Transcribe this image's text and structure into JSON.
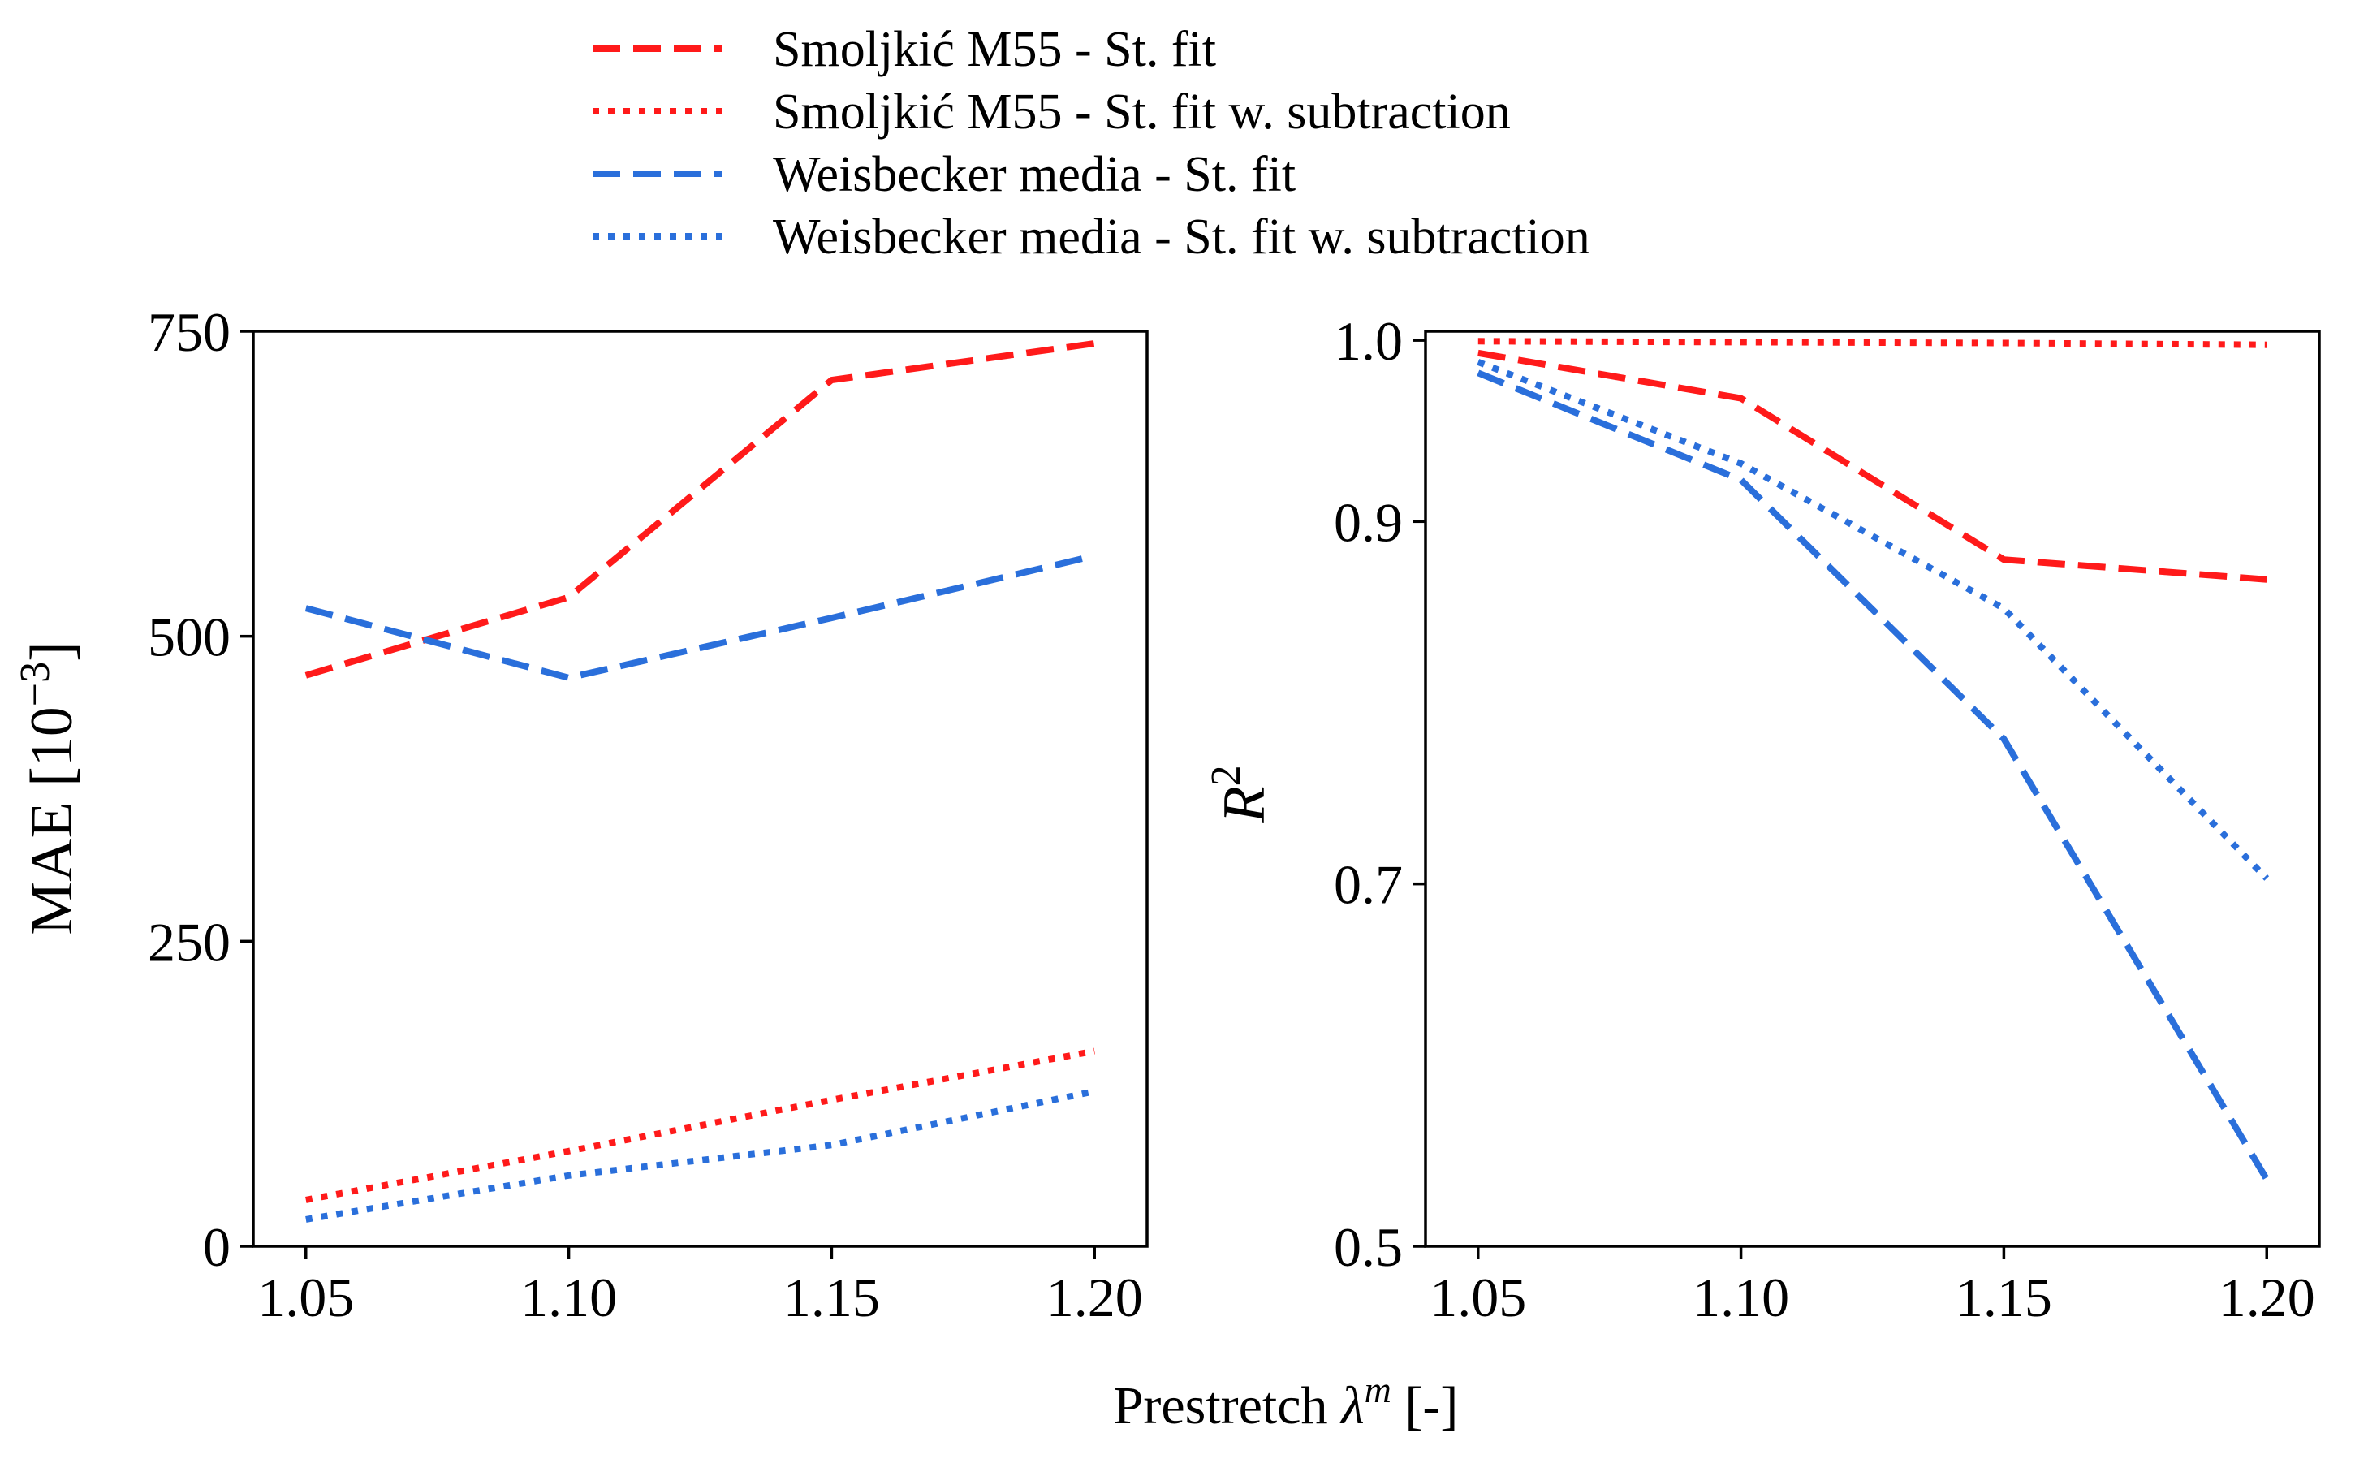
{
  "chart_data": [
    {
      "type": "line",
      "panel": "left",
      "xlabel": "",
      "ylabel": "MAE [10",
      "ylabel_sup": "−3",
      "ylabel_close": "]",
      "xlim": [
        1.04,
        1.21
      ],
      "ylim": [
        0,
        750
      ],
      "xticks": [
        1.05,
        1.1,
        1.15,
        1.2
      ],
      "xtick_labels": [
        "1.05",
        "1.10",
        "1.15",
        "1.20"
      ],
      "yticks": [
        0,
        250,
        500,
        750
      ],
      "ytick_labels": [
        "0",
        "250",
        "500",
        "750"
      ],
      "grid": false,
      "x": [
        1.05,
        1.1,
        1.15,
        1.2
      ],
      "series": [
        {
          "name": "Smoljkić M55 - St. fit",
          "color": "#ff1a1a",
          "style": "dashed",
          "values": [
            468,
            532,
            710,
            740
          ]
        },
        {
          "name": "Smoljkić M55 - St. fit w. subtraction",
          "color": "#ff1a1a",
          "style": "dotted",
          "values": [
            38,
            78,
            120,
            160
          ]
        },
        {
          "name": "Weisbecker media - St. fit",
          "color": "#2a6fdb",
          "style": "dashed",
          "values": [
            523,
            466,
            515,
            566
          ]
        },
        {
          "name": "Weisbecker media - St. fit w. subtraction",
          "color": "#2a6fdb",
          "style": "dotted",
          "values": [
            22,
            58,
            83,
            127
          ]
        }
      ]
    },
    {
      "type": "line",
      "panel": "right",
      "xlabel": "",
      "ylabel": "R",
      "ylabel_sup": "2",
      "ylabel_close": "",
      "xlim": [
        1.04,
        1.21
      ],
      "ylim": [
        0.5,
        1.005
      ],
      "xticks": [
        1.05,
        1.1,
        1.15,
        1.2
      ],
      "xtick_labels": [
        "1.05",
        "1.10",
        "1.15",
        "1.20"
      ],
      "yticks": [
        0.5,
        0.7,
        0.9,
        1.0
      ],
      "ytick_labels": [
        "0.5",
        "0.7",
        "0.9",
        "1.0"
      ],
      "grid": false,
      "x": [
        1.05,
        1.1,
        1.15,
        1.2
      ],
      "series": [
        {
          "name": "Smoljkić M55 - St. fit",
          "color": "#ff1a1a",
          "style": "dashed",
          "values": [
            0.993,
            0.968,
            0.879,
            0.868
          ]
        },
        {
          "name": "Smoljkić M55 - St. fit w. subtraction",
          "color": "#ff1a1a",
          "style": "dotted",
          "values": [
            0.9995,
            0.999,
            0.9985,
            0.9975
          ]
        },
        {
          "name": "Weisbecker media - St. fit",
          "color": "#2a6fdb",
          "style": "dashed",
          "values": [
            0.982,
            0.923,
            0.78,
            0.537
          ]
        },
        {
          "name": "Weisbecker media - St. fit w. subtraction",
          "color": "#2a6fdb",
          "style": "dotted",
          "values": [
            0.988,
            0.932,
            0.852,
            0.703
          ]
        }
      ]
    }
  ],
  "shared": {
    "xlabel_prefix": "Prestretch ",
    "xlabel_symbol": "λ",
    "xlabel_sup": "m",
    "xlabel_suffix": " [-]"
  },
  "legend": {
    "placement": "top-center",
    "entries": [
      {
        "label": "Smoljkić M55 - St. fit",
        "color": "#ff1a1a",
        "style": "dashed"
      },
      {
        "label": "Smoljkić M55 - St. fit w. subtraction",
        "color": "#ff1a1a",
        "style": "dotted"
      },
      {
        "label": "Weisbecker media - St. fit",
        "color": "#2a6fdb",
        "style": "dashed"
      },
      {
        "label": "Weisbecker media - St. fit w. subtraction",
        "color": "#2a6fdb",
        "style": "dotted"
      }
    ]
  }
}
